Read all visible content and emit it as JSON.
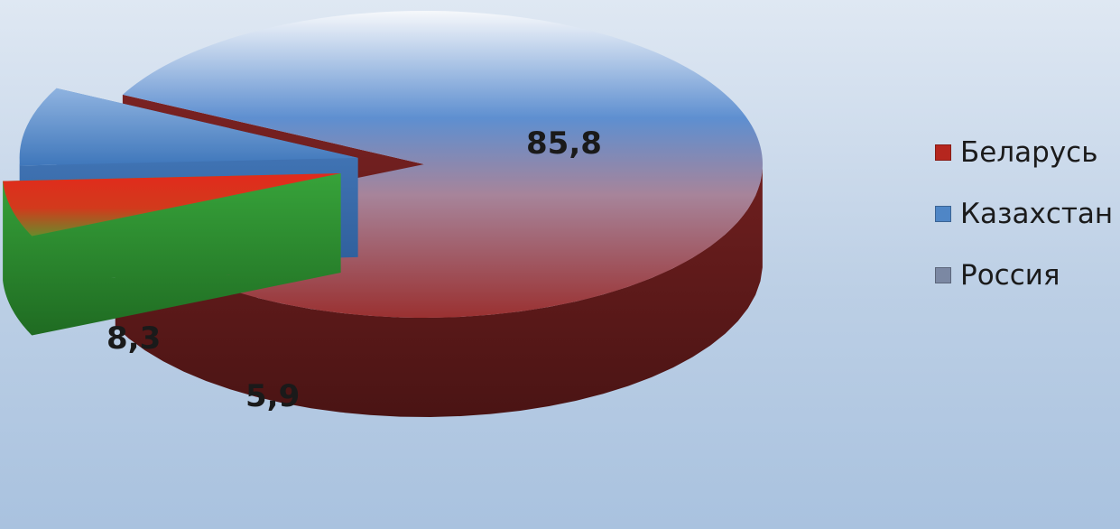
{
  "chart_data": {
    "type": "pie",
    "categories": [
      "Беларусь",
      "Казахстан",
      "Россия"
    ],
    "values": [
      5.9,
      8.3,
      85.8
    ],
    "labels": [
      "5,9",
      "8,3",
      "85,8"
    ],
    "legend_position": "right",
    "colors": {
      "Беларусь": "#cc2a20",
      "Казахстан": "#4f86c6",
      "Россия": "#8b2727"
    }
  },
  "legend": {
    "items": [
      {
        "label": "Беларусь",
        "color": "#b5261e"
      },
      {
        "label": "Казахстан",
        "color": "#4f86c6"
      },
      {
        "label": "Россия",
        "color": "#7b88a3"
      }
    ]
  }
}
